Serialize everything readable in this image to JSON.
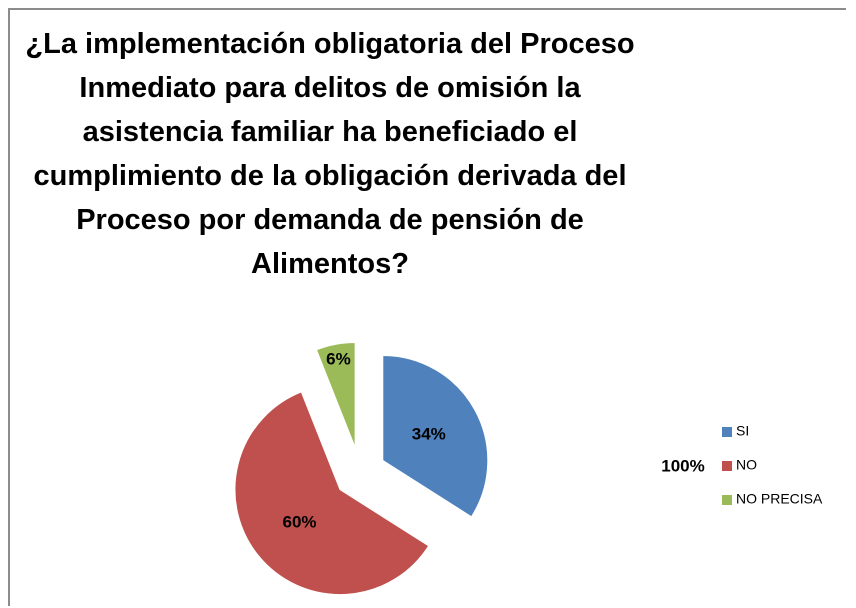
{
  "chart_data": {
    "type": "pie",
    "title": "¿La implementación obligatoria del Proceso Inmediato para delitos de omisión la asistencia familiar ha beneficiado el cumplimiento de la obligación derivada del Proceso por demanda de pensión de Alimentos?",
    "categories": [
      "SI",
      "NO",
      "NO PRECISA"
    ],
    "values": [
      34,
      60,
      6
    ],
    "value_labels": [
      "34%",
      "60%",
      "6%"
    ],
    "colors": [
      "#4f81bd",
      "#c0504d",
      "#9bbb59"
    ],
    "annotation": "100%",
    "exploded": true,
    "legend": "right"
  }
}
